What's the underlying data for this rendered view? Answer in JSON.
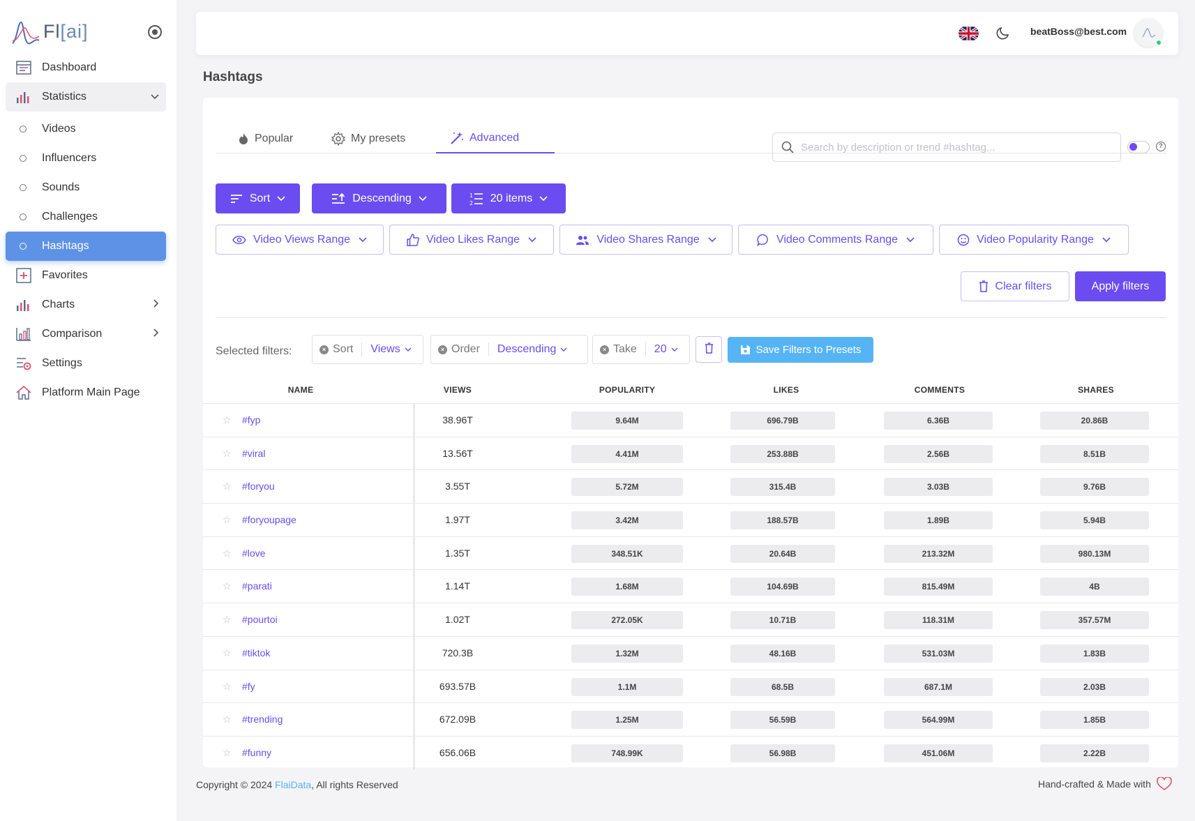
{
  "brand": {
    "name_main": "Fl",
    "name_ai": "[ai]"
  },
  "sidebar": {
    "items": [
      {
        "label": "Dashboard"
      },
      {
        "label": "Statistics"
      },
      {
        "label": "Favorites"
      },
      {
        "label": "Charts"
      },
      {
        "label": "Comparison"
      },
      {
        "label": "Settings"
      },
      {
        "label": "Platform Main Page"
      }
    ],
    "statistics_sub": [
      {
        "label": "Videos"
      },
      {
        "label": "Influencers"
      },
      {
        "label": "Sounds"
      },
      {
        "label": "Challenges"
      },
      {
        "label": "Hashtags"
      }
    ]
  },
  "header": {
    "user_email": "beatBoss@best.com"
  },
  "page": {
    "title": "Hashtags"
  },
  "tabs": [
    {
      "label": "Popular"
    },
    {
      "label": "My presets"
    },
    {
      "label": "Advanced"
    }
  ],
  "search": {
    "placeholder": "Search by description or trend #hashtag..."
  },
  "controls": {
    "sort": "Sort",
    "order": "Descending",
    "items": "20 items"
  },
  "ranges": [
    {
      "label": "Video Views Range"
    },
    {
      "label": "Video Likes Range"
    },
    {
      "label": "Video Shares Range"
    },
    {
      "label": "Video Comments Range"
    },
    {
      "label": "Video Popularity Range"
    }
  ],
  "actions": {
    "clear": "Clear filters",
    "apply": "Apply filters"
  },
  "selected_filters": {
    "label": "Selected filters:",
    "chips": [
      {
        "key": "Sort",
        "value": "Views"
      },
      {
        "key": "Order",
        "value": "Descending"
      },
      {
        "key": "Take",
        "value": "20"
      }
    ],
    "save": "Save Filters to Presets"
  },
  "table": {
    "columns": [
      "NAME",
      "VIEWS",
      "POPULARITY",
      "LIKES",
      "COMMENTS",
      "SHARES"
    ],
    "rows": [
      {
        "name": "#fyp",
        "views": "38.96T",
        "popularity": "9.64M",
        "likes": "696.79B",
        "comments": "6.36B",
        "shares": "20.86B"
      },
      {
        "name": "#viral",
        "views": "13.56T",
        "popularity": "4.41M",
        "likes": "253.88B",
        "comments": "2.56B",
        "shares": "8.51B"
      },
      {
        "name": "#foryou",
        "views": "3.55T",
        "popularity": "5.72M",
        "likes": "315.4B",
        "comments": "3.03B",
        "shares": "9.76B"
      },
      {
        "name": "#foryoupage",
        "views": "1.97T",
        "popularity": "3.42M",
        "likes": "188.57B",
        "comments": "1.89B",
        "shares": "5.94B"
      },
      {
        "name": "#love",
        "views": "1.35T",
        "popularity": "348.51K",
        "likes": "20.64B",
        "comments": "213.32M",
        "shares": "980.13M"
      },
      {
        "name": "#parati",
        "views": "1.14T",
        "popularity": "1.68M",
        "likes": "104.69B",
        "comments": "815.49M",
        "shares": "4B"
      },
      {
        "name": "#pourtoi",
        "views": "1.02T",
        "popularity": "272.05K",
        "likes": "10.71B",
        "comments": "118.31M",
        "shares": "357.57M"
      },
      {
        "name": "#tiktok",
        "views": "720.3B",
        "popularity": "1.32M",
        "likes": "48.16B",
        "comments": "531.03M",
        "shares": "1.83B"
      },
      {
        "name": "#fy",
        "views": "693.57B",
        "popularity": "1.1M",
        "likes": "68.5B",
        "comments": "687.1M",
        "shares": "2.03B"
      },
      {
        "name": "#trending",
        "views": "672.09B",
        "popularity": "1.25M",
        "likes": "56.59B",
        "comments": "564.99M",
        "shares": "1.85B"
      },
      {
        "name": "#funny",
        "views": "656.06B",
        "popularity": "748.99K",
        "likes": "56.98B",
        "comments": "451.06M",
        "shares": "2.22B"
      }
    ]
  },
  "footer": {
    "copyright_prefix": "Copyright © 2024 ",
    "company": "FlaiData",
    "copyright_suffix": ", All rights Reserved",
    "made_with": "Hand-crafted & Made with"
  },
  "colors": {
    "accent": "#6a4cf0",
    "active_nav": "#5e92e6",
    "save_button": "#56b4f5"
  }
}
